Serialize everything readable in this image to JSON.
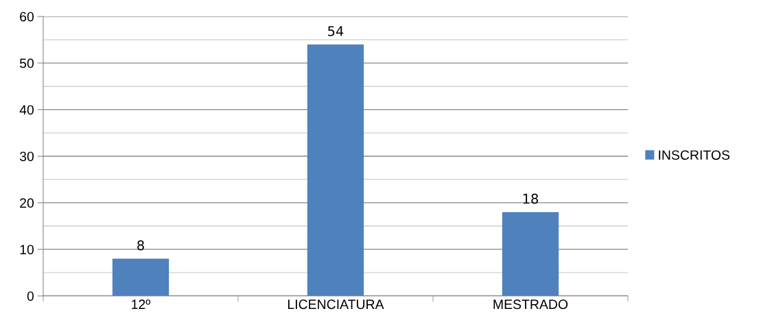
{
  "chart_data": {
    "type": "bar",
    "categories": [
      "12º",
      "LICENCIATURA",
      "MESTRADO"
    ],
    "series": [
      {
        "name": "INSCRITOS",
        "color": "#4f81bd",
        "values": [
          8,
          54,
          18
        ]
      }
    ],
    "ylim": [
      0,
      60
    ],
    "yticks": [
      0,
      10,
      20,
      30,
      40,
      50,
      60
    ],
    "grid": "y",
    "legend": "right",
    "data_labels": true
  }
}
